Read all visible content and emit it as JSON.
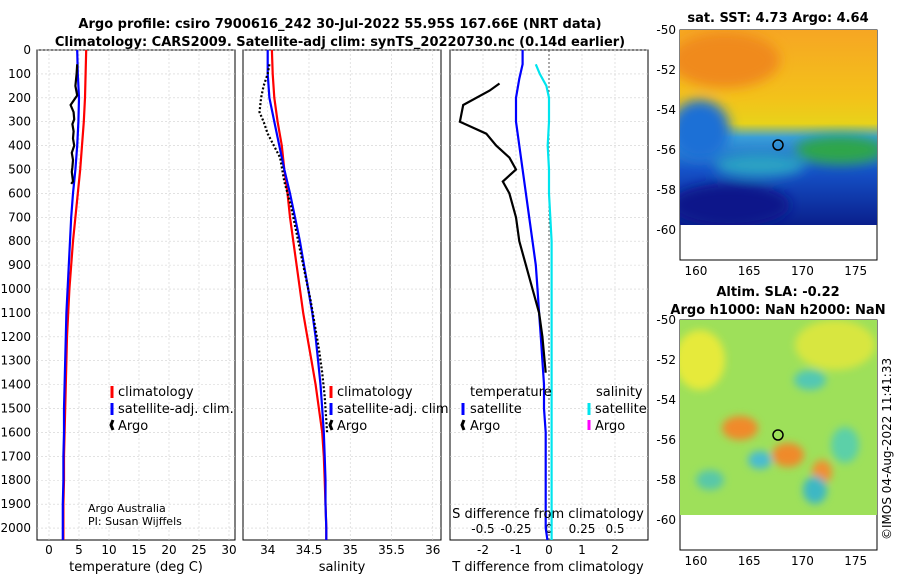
{
  "titles": {
    "line1": "Argo profile: csiro 7900616_242 30-Jul-2022 55.95S 167.66E (NRT data)",
    "line2": "Climatology: CARS2009. Satellite-adj clim: synTS_20220730.nc (0.14d earlier)"
  },
  "colors": {
    "climatology": "#ff0000",
    "satellite": "#0000ff",
    "argo": "#000000",
    "sat_salinity": "#00e5ee",
    "argo_salinity": "#ff00ff"
  },
  "legend_profiles": [
    "climatology",
    "satellite-adj. clim.",
    "Argo"
  ],
  "legend_diff": {
    "temp_header": "temperature",
    "sal_header": "salinity",
    "temp_items": [
      "satellite",
      "Argo"
    ],
    "sal_items": [
      "satellite",
      "Argo"
    ]
  },
  "credits": {
    "line1": "Argo Australia",
    "line2": "PI: Susan Wijffels"
  },
  "watermark": "©IMOS 04-Aug-2022 11:41:33",
  "chart_data": [
    {
      "type": "line",
      "title": "",
      "xlabel": "temperature (deg C)",
      "ylabel": "",
      "xlim": [
        -2,
        31
      ],
      "ylim": [
        2050,
        0
      ],
      "xticks": [
        "0",
        "5",
        "10",
        "15",
        "20",
        "25",
        "30"
      ],
      "yticks": [
        "0",
        "100",
        "200",
        "300",
        "400",
        "500",
        "600",
        "700",
        "800",
        "900",
        "1000",
        "1100",
        "1200",
        "1300",
        "1400",
        "1500",
        "1600",
        "1700",
        "1800",
        "1900",
        "2000"
      ],
      "series": [
        {
          "name": "climatology",
          "color": "#ff0000",
          "x": [
            6.2,
            6.1,
            6.0,
            5.8,
            5.5,
            5.2,
            4.8,
            4.4,
            4.0,
            3.7,
            3.4,
            3.2,
            3.0,
            2.9,
            2.8,
            2.7,
            2.6,
            2.5,
            2.5,
            2.4,
            2.4,
            2.4
          ],
          "y": [
            0,
            100,
            200,
            300,
            400,
            500,
            600,
            700,
            800,
            900,
            1000,
            1100,
            1200,
            1300,
            1400,
            1500,
            1600,
            1700,
            1800,
            1900,
            2000,
            2050
          ]
        },
        {
          "name": "satellite-adj. clim.",
          "color": "#0000ff",
          "x": [
            4.7,
            4.8,
            5.0,
            4.9,
            4.7,
            4.4,
            4.0,
            3.7,
            3.5,
            3.3,
            3.1,
            2.9,
            2.8,
            2.7,
            2.6,
            2.5,
            2.5,
            2.4,
            2.4,
            2.3,
            2.3,
            2.3
          ],
          "y": [
            0,
            100,
            200,
            300,
            400,
            500,
            600,
            700,
            800,
            900,
            1000,
            1100,
            1200,
            1300,
            1400,
            1500,
            1600,
            1700,
            1800,
            1900,
            2000,
            2050
          ]
        },
        {
          "name": "Argo",
          "color": "#000000",
          "x": [
            4.7,
            4.6,
            4.4,
            4.7,
            3.6,
            4.1,
            4.2,
            3.9,
            4.1,
            4.0,
            4.2,
            3.8,
            4.0,
            3.9,
            3.8,
            3.9,
            4.0,
            3.7
          ],
          "y": [
            60,
            100,
            150,
            190,
            230,
            260,
            290,
            310,
            340,
            370,
            400,
            430,
            460,
            490,
            510,
            530,
            550,
            560
          ]
        }
      ]
    },
    {
      "type": "line",
      "xlabel": "salinity",
      "xlim": [
        33.7,
        36.1
      ],
      "ylim": [
        2050,
        0
      ],
      "xticks": [
        "34",
        "34.5",
        "35",
        "35.5",
        "36"
      ],
      "series": [
        {
          "name": "climatology",
          "color": "#ff0000",
          "x": [
            34.05,
            34.06,
            34.08,
            34.12,
            34.17,
            34.2,
            34.24,
            34.27,
            34.31,
            34.35,
            34.39,
            34.43,
            34.48,
            34.53,
            34.58,
            34.62,
            34.66,
            34.68,
            34.69,
            34.7,
            34.71,
            34.71
          ],
          "y": [
            0,
            100,
            200,
            300,
            400,
            500,
            600,
            700,
            800,
            900,
            1000,
            1100,
            1200,
            1300,
            1400,
            1500,
            1600,
            1700,
            1800,
            1900,
            2000,
            2050
          ]
        },
        {
          "name": "satellite-adj. clim.",
          "color": "#0000ff",
          "x": [
            34.0,
            34.0,
            34.02,
            34.08,
            34.14,
            34.2,
            34.27,
            34.33,
            34.39,
            34.44,
            34.49,
            34.54,
            34.58,
            34.61,
            34.64,
            34.66,
            34.68,
            34.69,
            34.7,
            34.7,
            34.71,
            34.71
          ],
          "y": [
            0,
            100,
            200,
            300,
            400,
            500,
            600,
            700,
            800,
            900,
            1000,
            1100,
            1200,
            1300,
            1400,
            1500,
            1600,
            1700,
            1800,
            1900,
            2000,
            2050
          ]
        },
        {
          "name": "Argo",
          "color": "#000000",
          "x": [
            34.02,
            34.0,
            33.95,
            33.92,
            33.9,
            33.95,
            34.0,
            34.15,
            34.2,
            34.28,
            34.34,
            34.4,
            34.46,
            34.52,
            34.57,
            34.62,
            34.66,
            34.69,
            34.71,
            34.72
          ],
          "y": [
            60,
            100,
            150,
            200,
            260,
            300,
            350,
            450,
            550,
            650,
            750,
            850,
            950,
            1050,
            1150,
            1250,
            1350,
            1450,
            1550,
            1600
          ]
        }
      ]
    },
    {
      "type": "line",
      "xlabel": "T difference from climatology",
      "xlabel_top": "S difference from climatology",
      "xlim": [
        -3.0,
        3.0
      ],
      "ylim": [
        2050,
        0
      ],
      "xticks": [
        "-2",
        "-1",
        "0",
        "1",
        "2"
      ],
      "xticks_top": [
        "-0.5",
        "-0.25",
        "0",
        "0.25",
        "0.5"
      ],
      "series": [
        {
          "name": "temperature satellite",
          "color": "#0000ff",
          "x": [
            -0.8,
            -0.8,
            -0.9,
            -1.0,
            -1.0,
            -0.9,
            -0.8,
            -0.7,
            -0.6,
            -0.5,
            -0.4,
            -0.35,
            -0.3,
            -0.25,
            -0.2,
            -0.15,
            -0.15,
            -0.1,
            -0.1,
            -0.1,
            -0.1,
            -0.1,
            -0.05
          ],
          "y": [
            0,
            60,
            120,
            200,
            300,
            400,
            500,
            600,
            700,
            800,
            900,
            1000,
            1100,
            1200,
            1300,
            1400,
            1500,
            1600,
            1700,
            1800,
            1900,
            2000,
            2050
          ]
        },
        {
          "name": "temperature Argo",
          "color": "#000000",
          "x": [
            -1.5,
            -1.8,
            -2.6,
            -2.7,
            -1.9,
            -1.6,
            -1.2,
            -1.0,
            -1.4,
            -1.2,
            -1.0,
            -0.9,
            -0.7,
            -0.5,
            -0.3,
            -0.2,
            -0.1
          ],
          "y": [
            140,
            170,
            230,
            300,
            350,
            400,
            450,
            500,
            550,
            600,
            700,
            800,
            900,
            1000,
            1100,
            1200,
            1350
          ]
        },
        {
          "name": "salinity satellite",
          "color": "#00e5ee",
          "x": [
            -0.1,
            -0.07,
            -0.02,
            0.0,
            0.0,
            -0.01,
            0.0,
            0.0,
            0.01,
            0.02,
            0.02,
            0.02,
            0.02,
            0.02,
            0.02,
            0.02,
            0.02,
            0.02
          ],
          "y": [
            60,
            100,
            150,
            200,
            300,
            400,
            500,
            600,
            700,
            800,
            900,
            1000,
            1200,
            1400,
            1600,
            1800,
            2000,
            2050
          ]
        },
        {
          "name": "salinity Argo",
          "color": "#ff00ff",
          "x": [],
          "y": []
        }
      ]
    },
    {
      "type": "heatmap",
      "title": "sat. SST: 4.73 Argo: 4.64",
      "xlim": [
        158.5,
        177
      ],
      "ylim": [
        -61.5,
        -50
      ],
      "xticks": [
        "160",
        "165",
        "170",
        "175"
      ],
      "yticks": [
        "-50",
        "-52",
        "-54",
        "-56",
        "-58",
        "-60"
      ],
      "argo_position": {
        "lon": 167.66,
        "lat": -55.95
      }
    },
    {
      "type": "heatmap",
      "title": "Altim. SLA: -0.22",
      "subtitle": "Argo h1000: NaN h2000: NaN",
      "xlim": [
        158.5,
        177
      ],
      "ylim": [
        -61.5,
        -50
      ],
      "xticks": [
        "160",
        "165",
        "170",
        "175"
      ],
      "yticks": [
        "-50",
        "-52",
        "-54",
        "-56",
        "-58",
        "-60"
      ],
      "argo_position": {
        "lon": 167.66,
        "lat": -55.95
      }
    }
  ]
}
